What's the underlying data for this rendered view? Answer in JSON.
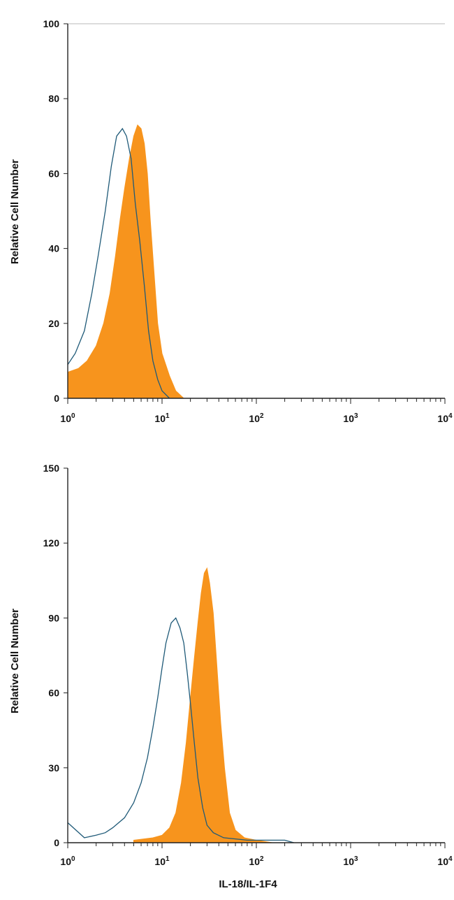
{
  "chart_data": [
    {
      "type": "area",
      "xscale": "log",
      "xlim": [
        1,
        10000
      ],
      "ylim": [
        0,
        100
      ],
      "xlabel": "",
      "ylabel": "Relative Cell Number",
      "x_tick_labels": [
        {
          "value": 1,
          "base": "10",
          "exp": "0"
        },
        {
          "value": 10,
          "base": "10",
          "exp": "1"
        },
        {
          "value": 100,
          "base": "10",
          "exp": "2"
        },
        {
          "value": 1000,
          "base": "10",
          "exp": "3"
        },
        {
          "value": 10000,
          "base": "10",
          "exp": "4"
        }
      ],
      "y_ticks": [
        0,
        20,
        40,
        60,
        80,
        100
      ],
      "y_tick_labels": [
        "0",
        "20",
        "40",
        "60",
        "80",
        "100"
      ],
      "top_gridline": 100,
      "series": [
        {
          "style": "filled",
          "color": "#f7941d",
          "points": [
            [
              1.0,
              7
            ],
            [
              1.3,
              8
            ],
            [
              1.6,
              10
            ],
            [
              2.0,
              14
            ],
            [
              2.4,
              20
            ],
            [
              2.8,
              28
            ],
            [
              3.2,
              38
            ],
            [
              3.6,
              48
            ],
            [
              4.0,
              56
            ],
            [
              4.5,
              64
            ],
            [
              5.0,
              70
            ],
            [
              5.5,
              73
            ],
            [
              6.0,
              72
            ],
            [
              6.5,
              68
            ],
            [
              7.0,
              60
            ],
            [
              7.5,
              48
            ],
            [
              8.0,
              38
            ],
            [
              9.0,
              20
            ],
            [
              10.0,
              12
            ],
            [
              12.0,
              6
            ],
            [
              14.0,
              2
            ],
            [
              17.0,
              0
            ]
          ]
        },
        {
          "style": "outline",
          "color": "#1f5a78",
          "points": [
            [
              1.0,
              9
            ],
            [
              1.2,
              12
            ],
            [
              1.5,
              18
            ],
            [
              1.8,
              28
            ],
            [
              2.1,
              38
            ],
            [
              2.5,
              50
            ],
            [
              2.9,
              62
            ],
            [
              3.3,
              70
            ],
            [
              3.8,
              72
            ],
            [
              4.2,
              70
            ],
            [
              4.7,
              64
            ],
            [
              5.2,
              52
            ],
            [
              5.8,
              42
            ],
            [
              6.5,
              30
            ],
            [
              7.2,
              18
            ],
            [
              8.0,
              10
            ],
            [
              9.0,
              5
            ],
            [
              10.0,
              2
            ],
            [
              12.0,
              0
            ]
          ]
        }
      ]
    },
    {
      "type": "area",
      "xscale": "log",
      "xlim": [
        1,
        10000
      ],
      "ylim": [
        0,
        150
      ],
      "xlabel": "IL-18/IL-1F4",
      "ylabel": "Relative Cell Number",
      "x_tick_labels": [
        {
          "value": 1,
          "base": "10",
          "exp": "0"
        },
        {
          "value": 10,
          "base": "10",
          "exp": "1"
        },
        {
          "value": 100,
          "base": "10",
          "exp": "2"
        },
        {
          "value": 1000,
          "base": "10",
          "exp": "3"
        },
        {
          "value": 10000,
          "base": "10",
          "exp": "4"
        }
      ],
      "y_ticks": [
        0,
        30,
        60,
        90,
        120,
        150
      ],
      "y_tick_labels": [
        "0",
        "30",
        "60",
        "90",
        "120",
        "150"
      ],
      "series": [
        {
          "style": "filled",
          "color": "#f7941d",
          "points": [
            [
              5.0,
              1
            ],
            [
              8.0,
              2
            ],
            [
              10.0,
              3
            ],
            [
              12.0,
              6
            ],
            [
              14.0,
              12
            ],
            [
              16.0,
              24
            ],
            [
              18.0,
              40
            ],
            [
              20.0,
              58
            ],
            [
              22.0,
              74
            ],
            [
              24.0,
              88
            ],
            [
              26.0,
              100
            ],
            [
              28.0,
              108
            ],
            [
              30.0,
              110
            ],
            [
              32.0,
              104
            ],
            [
              35.0,
              92
            ],
            [
              38.0,
              72
            ],
            [
              42.0,
              48
            ],
            [
              46.0,
              30
            ],
            [
              52.0,
              12
            ],
            [
              60.0,
              5
            ],
            [
              75.0,
              2
            ],
            [
              100.0,
              1
            ],
            [
              150.0,
              0
            ]
          ]
        },
        {
          "style": "outline",
          "color": "#1f5a78",
          "points": [
            [
              1.0,
              8
            ],
            [
              1.5,
              2
            ],
            [
              2.0,
              3
            ],
            [
              2.5,
              4
            ],
            [
              3.0,
              6
            ],
            [
              4.0,
              10
            ],
            [
              5.0,
              16
            ],
            [
              6.0,
              24
            ],
            [
              7.0,
              34
            ],
            [
              8.0,
              46
            ],
            [
              9.0,
              58
            ],
            [
              10.0,
              70
            ],
            [
              11.0,
              80
            ],
            [
              12.5,
              88
            ],
            [
              14.0,
              90
            ],
            [
              15.5,
              86
            ],
            [
              17.0,
              80
            ],
            [
              18.5,
              68
            ],
            [
              20.0,
              56
            ],
            [
              22.0,
              40
            ],
            [
              24.0,
              26
            ],
            [
              27.0,
              14
            ],
            [
              30.0,
              7
            ],
            [
              35.0,
              4
            ],
            [
              45.0,
              2
            ],
            [
              80.0,
              1
            ],
            [
              200.0,
              1
            ],
            [
              250.0,
              0
            ]
          ]
        }
      ]
    }
  ]
}
